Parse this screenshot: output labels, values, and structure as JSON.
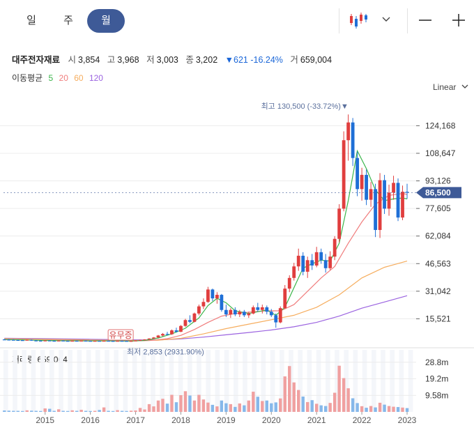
{
  "tabs": [
    {
      "label": "일"
    },
    {
      "label": "주"
    },
    {
      "label": "월"
    }
  ],
  "icons": {
    "candle": "candlestick-icon",
    "dropdown": "chevron-down-icon",
    "minus": "zoom-out-icon",
    "plus": "zoom-in-icon"
  },
  "stock": {
    "name": "대주전자재료",
    "open_label": "시",
    "open": "3,854",
    "high_label": "고",
    "high": "3,968",
    "low_label": "저",
    "low": "3,003",
    "close_label": "종",
    "close": "3,202",
    "change": "▼621 -16.24%",
    "volume_label": "거",
    "volume": "659,004"
  },
  "ma": {
    "label": "이동평균",
    "p5": "5",
    "p20": "20",
    "p60": "60",
    "p120": "120"
  },
  "scale_label": "Linear",
  "volume_panel": {
    "label": "거래량 659,004"
  },
  "colors": {
    "up": "#e03e3e",
    "down": "#1f6fd6",
    "ma5": "#3bb54a",
    "ma20": "#f07d7d",
    "ma60": "#f6ad5e",
    "ma120": "#9b63e0",
    "price_tag": "#3e5a97",
    "active_tab": "#3e5a97"
  },
  "chart_data": {
    "type": "candlestick",
    "y_ticks": [
      "124,168",
      "108,647",
      "93,126",
      "77,605",
      "62,084",
      "46,563",
      "31,042",
      "15,521"
    ],
    "y_tick_values": [
      124168,
      108647,
      93126,
      77605,
      62084,
      46563,
      31042,
      15521
    ],
    "ylim": [
      0,
      140000
    ],
    "x_ticks": [
      "2015",
      "2016",
      "2017",
      "2018",
      "2019",
      "2020",
      "2021",
      "2022",
      "2023"
    ],
    "xlim": [
      2014.08,
      2023.2
    ],
    "current_price_label": "86,500",
    "current_price": 86500,
    "high_annotation": {
      "text": "최고 130,500 (-33.72%)▼",
      "value": 130500,
      "x": 2021.75
    },
    "low_annotation": {
      "text": "최저 2,853 (2931.90%)",
      "value": 2853,
      "x": 2016.9
    },
    "event_annotation": {
      "text": "유무증",
      "x": 2016.67
    },
    "volume_ticks": [
      "28.8m",
      "19.2m",
      "9.58m"
    ],
    "volume_tick_values": [
      28.8,
      19.2,
      9.58
    ],
    "volume_max": 36,
    "candles": [
      {
        "x": 2014.1,
        "o": 3900,
        "h": 4200,
        "l": 3600,
        "c": 3800
      },
      {
        "x": 2014.2,
        "o": 3800,
        "h": 4100,
        "l": 3500,
        "c": 3700
      },
      {
        "x": 2014.3,
        "o": 3700,
        "h": 4000,
        "l": 3400,
        "c": 3600
      },
      {
        "x": 2014.4,
        "o": 3600,
        "h": 3900,
        "l": 3300,
        "c": 3500
      },
      {
        "x": 2014.5,
        "o": 3500,
        "h": 3800,
        "l": 3200,
        "c": 3400
      },
      {
        "x": 2014.6,
        "o": 3400,
        "h": 3900,
        "l": 3200,
        "c": 3700
      },
      {
        "x": 2014.7,
        "o": 3700,
        "h": 3900,
        "l": 3100,
        "c": 3300
      },
      {
        "x": 2014.8,
        "o": 3300,
        "h": 3600,
        "l": 3000,
        "c": 3200
      },
      {
        "x": 2014.9,
        "o": 3200,
        "h": 3500,
        "l": 2950,
        "c": 3100
      },
      {
        "x": 2015.0,
        "o": 3100,
        "h": 3500,
        "l": 3000,
        "c": 3300
      },
      {
        "x": 2015.1,
        "o": 3300,
        "h": 3500,
        "l": 2950,
        "c": 3150
      },
      {
        "x": 2015.2,
        "o": 3150,
        "h": 3400,
        "l": 2950,
        "c": 3050
      },
      {
        "x": 2015.3,
        "o": 3050,
        "h": 3400,
        "l": 2950,
        "c": 3250
      },
      {
        "x": 2015.4,
        "o": 3250,
        "h": 3450,
        "l": 3000,
        "c": 3100
      },
      {
        "x": 2015.5,
        "o": 3100,
        "h": 3300,
        "l": 2900,
        "c": 3000
      },
      {
        "x": 2015.6,
        "o": 3000,
        "h": 3300,
        "l": 2900,
        "c": 3150
      },
      {
        "x": 2015.7,
        "o": 3150,
        "h": 3350,
        "l": 2950,
        "c": 3050
      },
      {
        "x": 2015.8,
        "o": 3050,
        "h": 3300,
        "l": 2950,
        "c": 3200
      },
      {
        "x": 2015.9,
        "o": 3200,
        "h": 3400,
        "l": 3000,
        "c": 3100
      },
      {
        "x": 2016.0,
        "o": 3100,
        "h": 3300,
        "l": 2950,
        "c": 3000
      },
      {
        "x": 2016.1,
        "o": 3000,
        "h": 3200,
        "l": 2900,
        "c": 3100
      },
      {
        "x": 2016.2,
        "o": 3100,
        "h": 3300,
        "l": 2950,
        "c": 3050
      },
      {
        "x": 2016.3,
        "o": 3050,
        "h": 3250,
        "l": 2950,
        "c": 3150
      },
      {
        "x": 2016.4,
        "o": 3150,
        "h": 3350,
        "l": 3000,
        "c": 3050
      },
      {
        "x": 2016.5,
        "o": 3050,
        "h": 3200,
        "l": 2900,
        "c": 2950
      },
      {
        "x": 2016.6,
        "o": 2950,
        "h": 3200,
        "l": 2900,
        "c": 3100
      },
      {
        "x": 2016.7,
        "o": 3100,
        "h": 3300,
        "l": 2950,
        "c": 3050
      },
      {
        "x": 2016.8,
        "o": 3050,
        "h": 3200,
        "l": 2900,
        "c": 2950
      },
      {
        "x": 2016.9,
        "o": 2950,
        "h": 3150,
        "l": 2853,
        "c": 3050
      },
      {
        "x": 2017.0,
        "o": 3050,
        "h": 3400,
        "l": 3000,
        "c": 3300
      },
      {
        "x": 2017.1,
        "o": 3300,
        "h": 3700,
        "l": 3200,
        "c": 3600
      },
      {
        "x": 2017.2,
        "o": 3600,
        "h": 4000,
        "l": 3500,
        "c": 3900
      },
      {
        "x": 2017.3,
        "o": 3900,
        "h": 4600,
        "l": 3800,
        "c": 4400
      },
      {
        "x": 2017.4,
        "o": 4400,
        "h": 5200,
        "l": 4200,
        "c": 5000
      },
      {
        "x": 2017.5,
        "o": 5000,
        "h": 6400,
        "l": 4800,
        "c": 6100
      },
      {
        "x": 2017.6,
        "o": 6100,
        "h": 7500,
        "l": 5600,
        "c": 7000
      },
      {
        "x": 2017.7,
        "o": 7000,
        "h": 8200,
        "l": 6300,
        "c": 6800
      },
      {
        "x": 2017.8,
        "o": 6800,
        "h": 9500,
        "l": 6500,
        "c": 9000
      },
      {
        "x": 2017.9,
        "o": 9000,
        "h": 10500,
        "l": 7800,
        "c": 8200
      },
      {
        "x": 2018.0,
        "o": 8200,
        "h": 12000,
        "l": 8000,
        "c": 11500
      },
      {
        "x": 2018.1,
        "o": 11500,
        "h": 15500,
        "l": 11000,
        "c": 14800
      },
      {
        "x": 2018.2,
        "o": 14800,
        "h": 17500,
        "l": 13000,
        "c": 13800
      },
      {
        "x": 2018.3,
        "o": 13800,
        "h": 19000,
        "l": 13500,
        "c": 18500
      },
      {
        "x": 2018.4,
        "o": 18500,
        "h": 23500,
        "l": 17500,
        "c": 22500
      },
      {
        "x": 2018.5,
        "o": 22500,
        "h": 27000,
        "l": 21000,
        "c": 25000
      },
      {
        "x": 2018.6,
        "o": 25000,
        "h": 33500,
        "l": 24500,
        "c": 32000
      },
      {
        "x": 2018.7,
        "o": 32000,
        "h": 32500,
        "l": 25500,
        "c": 27000
      },
      {
        "x": 2018.8,
        "o": 27000,
        "h": 30500,
        "l": 24000,
        "c": 29000
      },
      {
        "x": 2018.9,
        "o": 29000,
        "h": 29500,
        "l": 19500,
        "c": 20500
      },
      {
        "x": 2019.0,
        "o": 20500,
        "h": 23500,
        "l": 16500,
        "c": 18000
      },
      {
        "x": 2019.1,
        "o": 18000,
        "h": 21500,
        "l": 16000,
        "c": 20500
      },
      {
        "x": 2019.2,
        "o": 20500,
        "h": 22000,
        "l": 17000,
        "c": 18000
      },
      {
        "x": 2019.3,
        "o": 18000,
        "h": 20500,
        "l": 16500,
        "c": 19500
      },
      {
        "x": 2019.4,
        "o": 19500,
        "h": 20500,
        "l": 16500,
        "c": 17500
      },
      {
        "x": 2019.5,
        "o": 17500,
        "h": 19500,
        "l": 16000,
        "c": 18500
      },
      {
        "x": 2019.6,
        "o": 18500,
        "h": 23000,
        "l": 18000,
        "c": 22000
      },
      {
        "x": 2019.7,
        "o": 22000,
        "h": 24500,
        "l": 19500,
        "c": 20500
      },
      {
        "x": 2019.8,
        "o": 20500,
        "h": 23500,
        "l": 18500,
        "c": 22000
      },
      {
        "x": 2019.9,
        "o": 22000,
        "h": 23000,
        "l": 18000,
        "c": 19500
      },
      {
        "x": 2020.0,
        "o": 19500,
        "h": 21000,
        "l": 16500,
        "c": 17500
      },
      {
        "x": 2020.1,
        "o": 17500,
        "h": 18500,
        "l": 10500,
        "c": 13500
      },
      {
        "x": 2020.2,
        "o": 13500,
        "h": 22500,
        "l": 13000,
        "c": 21500
      },
      {
        "x": 2020.3,
        "o": 21500,
        "h": 34500,
        "l": 21000,
        "c": 32500
      },
      {
        "x": 2020.4,
        "o": 32500,
        "h": 40000,
        "l": 30500,
        "c": 38500
      },
      {
        "x": 2020.5,
        "o": 38500,
        "h": 47000,
        "l": 37000,
        "c": 45000
      },
      {
        "x": 2020.6,
        "o": 45000,
        "h": 55000,
        "l": 42500,
        "c": 51000
      },
      {
        "x": 2020.7,
        "o": 51000,
        "h": 53000,
        "l": 40000,
        "c": 42000
      },
      {
        "x": 2020.8,
        "o": 42000,
        "h": 50500,
        "l": 38500,
        "c": 48500
      },
      {
        "x": 2020.9,
        "o": 48500,
        "h": 52000,
        "l": 43000,
        "c": 45500
      },
      {
        "x": 2021.0,
        "o": 45500,
        "h": 56000,
        "l": 44500,
        "c": 53000
      },
      {
        "x": 2021.1,
        "o": 53000,
        "h": 55000,
        "l": 46500,
        "c": 48500
      },
      {
        "x": 2021.2,
        "o": 48500,
        "h": 52000,
        "l": 41500,
        "c": 44000
      },
      {
        "x": 2021.3,
        "o": 44000,
        "h": 53500,
        "l": 43000,
        "c": 50500
      },
      {
        "x": 2021.4,
        "o": 50500,
        "h": 62000,
        "l": 48500,
        "c": 60500
      },
      {
        "x": 2021.5,
        "o": 60500,
        "h": 80000,
        "l": 58500,
        "c": 77500
      },
      {
        "x": 2021.6,
        "o": 77500,
        "h": 121000,
        "l": 76000,
        "c": 116000
      },
      {
        "x": 2021.7,
        "o": 116000,
        "h": 130500,
        "l": 104500,
        "c": 126000
      },
      {
        "x": 2021.8,
        "o": 126000,
        "h": 128500,
        "l": 101500,
        "c": 106000
      },
      {
        "x": 2021.9,
        "o": 106000,
        "h": 109500,
        "l": 84500,
        "c": 88500
      },
      {
        "x": 2022.0,
        "o": 88500,
        "h": 100500,
        "l": 82000,
        "c": 96500
      },
      {
        "x": 2022.1,
        "o": 96500,
        "h": 99500,
        "l": 79500,
        "c": 82500
      },
      {
        "x": 2022.2,
        "o": 82500,
        "h": 92500,
        "l": 78500,
        "c": 88500
      },
      {
        "x": 2022.3,
        "o": 88500,
        "h": 91500,
        "l": 61500,
        "c": 65500
      },
      {
        "x": 2022.4,
        "o": 65500,
        "h": 97500,
        "l": 61000,
        "c": 93500
      },
      {
        "x": 2022.5,
        "o": 93500,
        "h": 96500,
        "l": 74500,
        "c": 77500
      },
      {
        "x": 2022.6,
        "o": 77500,
        "h": 91000,
        "l": 73500,
        "c": 86500
      },
      {
        "x": 2022.7,
        "o": 86500,
        "h": 96000,
        "l": 82500,
        "c": 92000
      },
      {
        "x": 2022.8,
        "o": 92000,
        "h": 94500,
        "l": 70500,
        "c": 72500
      },
      {
        "x": 2022.9,
        "o": 72500,
        "h": 90500,
        "l": 71000,
        "c": 87000
      },
      {
        "x": 2023.0,
        "o": 87000,
        "h": 91500,
        "l": 83000,
        "c": 86500
      }
    ],
    "volumes": [
      0.8,
      0.7,
      0.6,
      0.6,
      0.5,
      0.9,
      0.7,
      0.6,
      0.5,
      2.0,
      1.8,
      0.6,
      1.5,
      0.6,
      0.5,
      0.9,
      0.6,
      1.2,
      0.6,
      0.5,
      0.6,
      1.1,
      2.6,
      0.6,
      0.5,
      1.0,
      0.6,
      0.5,
      0.7,
      0.8,
      2.3,
      1.4,
      4.5,
      3.2,
      6.6,
      7.6,
      4.8,
      9.9,
      5.6,
      9.7,
      12.0,
      9.5,
      6.6,
      9.9,
      7.2,
      5.4,
      4.1,
      3.2,
      6.6,
      5.0,
      4.5,
      2.9,
      4.9,
      3.8,
      6.6,
      11.7,
      8.8,
      6.3,
      6.6,
      5.0,
      5.5,
      7.8,
      20.6,
      26.6,
      17.1,
      12.7,
      8.9,
      5.7,
      6.8,
      4.7,
      3.8,
      3.4,
      5.2,
      11.1,
      26.8,
      19.6,
      13.7,
      7.9,
      5.1,
      3.3,
      2.4,
      3.4,
      2.6,
      5.3,
      4.2,
      3.4,
      3.0,
      2.8,
      2.5,
      2.2
    ],
    "ma5": [
      [
        2014.1,
        3850
      ],
      [
        2014.5,
        3650
      ],
      [
        2015.0,
        3350
      ],
      [
        2015.5,
        3150
      ],
      [
        2016.0,
        3080
      ],
      [
        2016.5,
        3050
      ],
      [
        2016.9,
        3000
      ],
      [
        2017.2,
        3350
      ],
      [
        2017.5,
        4700
      ],
      [
        2017.8,
        7000
      ],
      [
        2018.1,
        10200
      ],
      [
        2018.4,
        16000
      ],
      [
        2018.6,
        23000
      ],
      [
        2018.8,
        27000
      ],
      [
        2019.0,
        24500
      ],
      [
        2019.2,
        20000
      ],
      [
        2019.5,
        18500
      ],
      [
        2019.7,
        19500
      ],
      [
        2019.9,
        20500
      ],
      [
        2020.1,
        17500
      ],
      [
        2020.3,
        22000
      ],
      [
        2020.5,
        33000
      ],
      [
        2020.7,
        44000
      ],
      [
        2020.9,
        46500
      ],
      [
        2021.1,
        48500
      ],
      [
        2021.3,
        48000
      ],
      [
        2021.5,
        58000
      ],
      [
        2021.7,
        82000
      ],
      [
        2021.9,
        110000
      ],
      [
        2022.1,
        100000
      ],
      [
        2022.3,
        88000
      ],
      [
        2022.5,
        82000
      ],
      [
        2022.7,
        83000
      ],
      [
        2022.9,
        83500
      ],
      [
        2023.0,
        83000
      ]
    ],
    "ma20": [
      [
        2014.1,
        3800
      ],
      [
        2015.0,
        3500
      ],
      [
        2016.0,
        3200
      ],
      [
        2016.9,
        3050
      ],
      [
        2017.3,
        3250
      ],
      [
        2017.7,
        4300
      ],
      [
        2018.0,
        6200
      ],
      [
        2018.3,
        9500
      ],
      [
        2018.6,
        13500
      ],
      [
        2018.9,
        17000
      ],
      [
        2019.2,
        18500
      ],
      [
        2019.6,
        19500
      ],
      [
        2019.9,
        20000
      ],
      [
        2020.2,
        20000
      ],
      [
        2020.5,
        23500
      ],
      [
        2020.8,
        31000
      ],
      [
        2021.1,
        38500
      ],
      [
        2021.4,
        45000
      ],
      [
        2021.7,
        58000
      ],
      [
        2022.0,
        70000
      ],
      [
        2022.3,
        80000
      ],
      [
        2022.6,
        85000
      ],
      [
        2022.9,
        86000
      ],
      [
        2023.0,
        85500
      ]
    ],
    "ma60": [
      [
        2014.1,
        4300
      ],
      [
        2015.0,
        4000
      ],
      [
        2016.0,
        3600
      ],
      [
        2016.9,
        3300
      ],
      [
        2017.5,
        3500
      ],
      [
        2018.0,
        4500
      ],
      [
        2018.5,
        7000
      ],
      [
        2019.0,
        10000
      ],
      [
        2019.5,
        12500
      ],
      [
        2020.0,
        15000
      ],
      [
        2020.5,
        17500
      ],
      [
        2021.0,
        22000
      ],
      [
        2021.5,
        29000
      ],
      [
        2022.0,
        38500
      ],
      [
        2022.5,
        44500
      ],
      [
        2023.0,
        48000
      ]
    ],
    "ma120": [
      [
        2014.1,
        4600
      ],
      [
        2015.0,
        4300
      ],
      [
        2016.0,
        4000
      ],
      [
        2016.9,
        3700
      ],
      [
        2017.5,
        3600
      ],
      [
        2018.0,
        4200
      ],
      [
        2018.5,
        5200
      ],
      [
        2019.0,
        6500
      ],
      [
        2019.5,
        7800
      ],
      [
        2020.0,
        9200
      ],
      [
        2020.5,
        11000
      ],
      [
        2021.0,
        13500
      ],
      [
        2021.5,
        17000
      ],
      [
        2022.0,
        21500
      ],
      [
        2022.5,
        25000
      ],
      [
        2023.0,
        28500
      ]
    ]
  }
}
